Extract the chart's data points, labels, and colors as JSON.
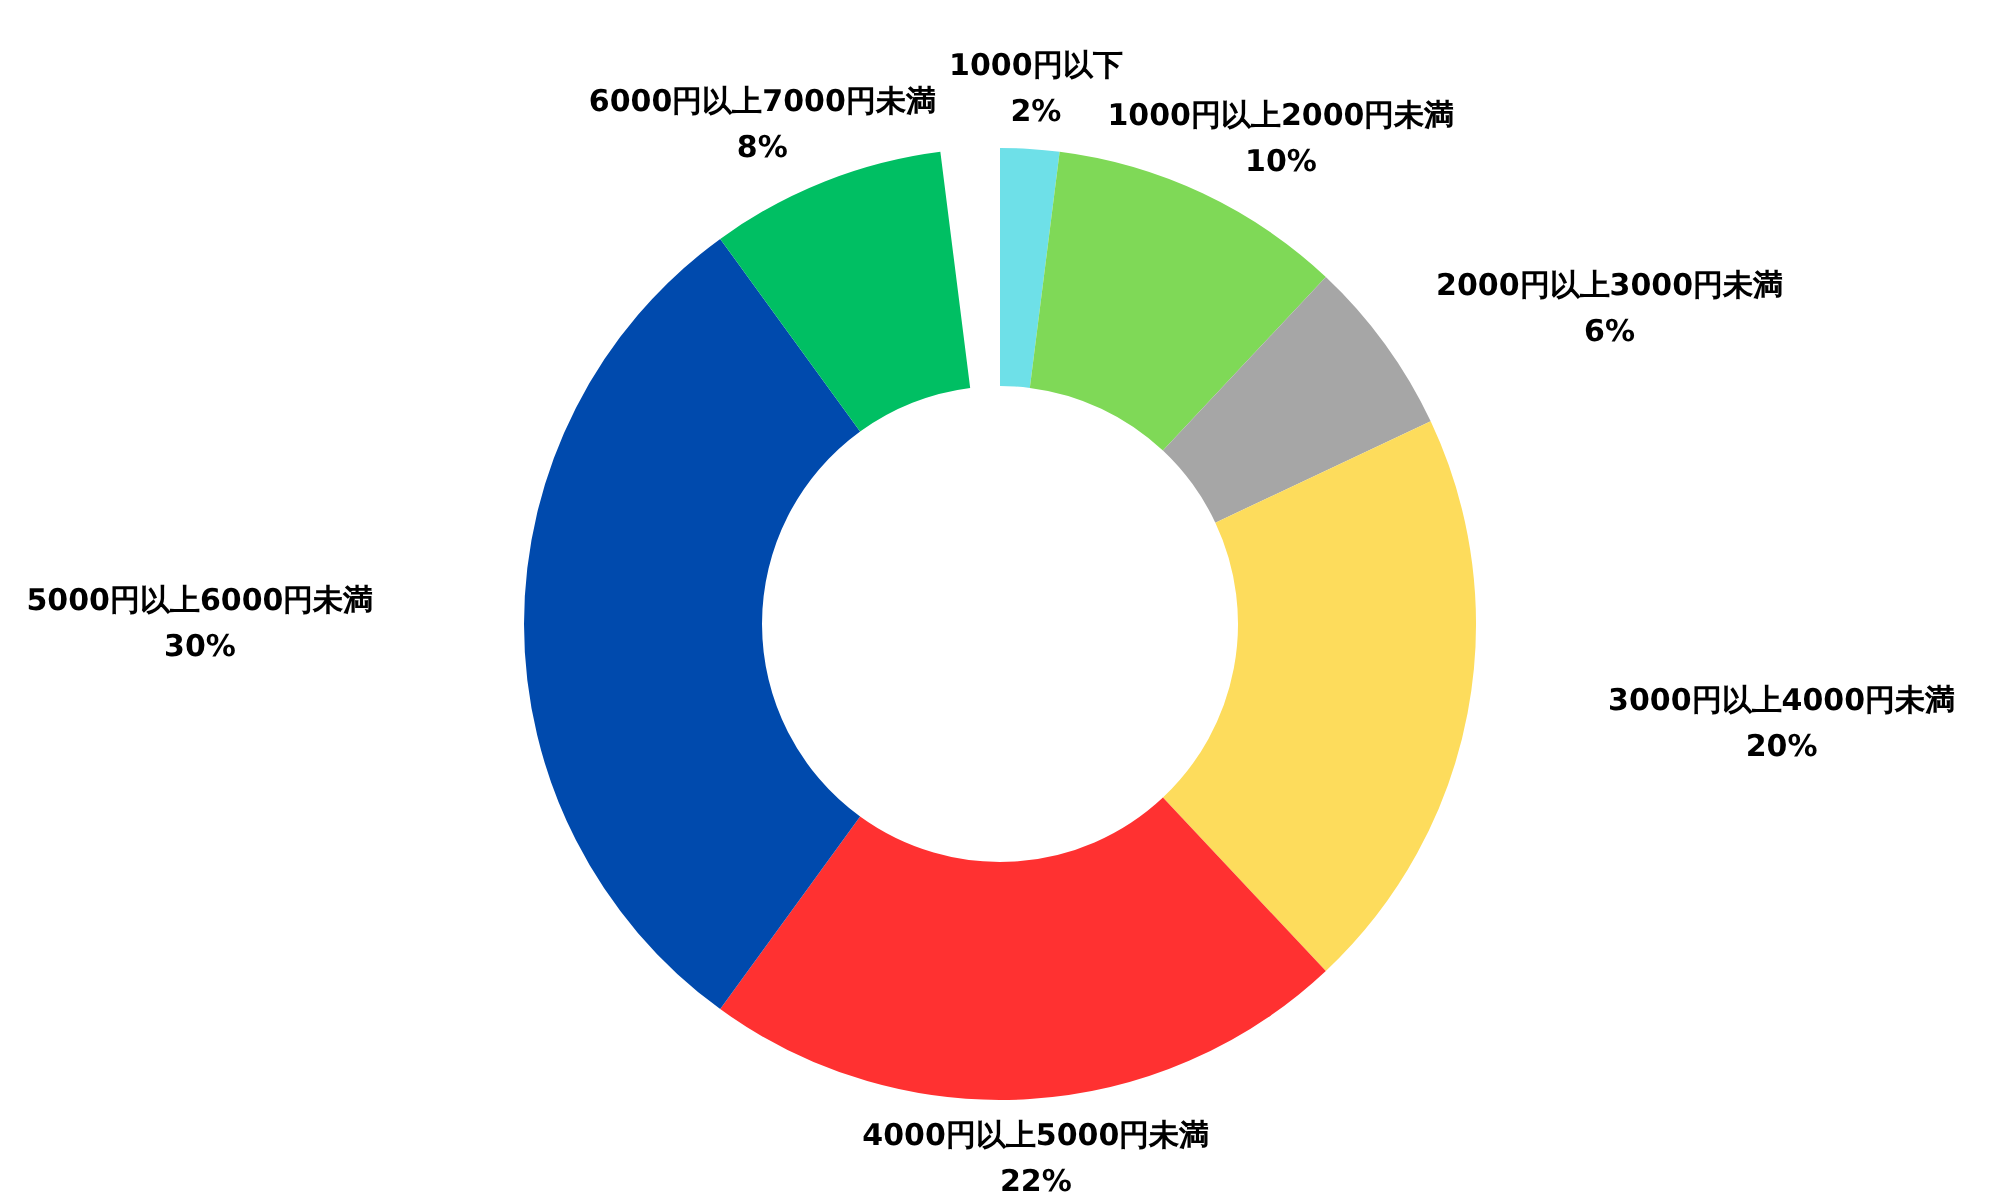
{
  "chart_data": {
    "type": "donut",
    "categories": [
      "1000円以下",
      "1000円以上2000円未満",
      "2000円以上3000円未満",
      "3000円以上4000円未満",
      "4000円以上5000円未満",
      "5000円以上6000円未満",
      "6000円以上7000円未満"
    ],
    "values": [
      2,
      10,
      6,
      20,
      22,
      30,
      8
    ],
    "colors": [
      "#6ee0e8",
      "#7fd957",
      "#a6a6a6",
      "#fddc5c",
      "#ff3131",
      "#004aad",
      "#00bf63"
    ],
    "value_labels": [
      "2%",
      "10%",
      "6%",
      "20%",
      "22%",
      "30%",
      "8%"
    ],
    "legend": false
  }
}
